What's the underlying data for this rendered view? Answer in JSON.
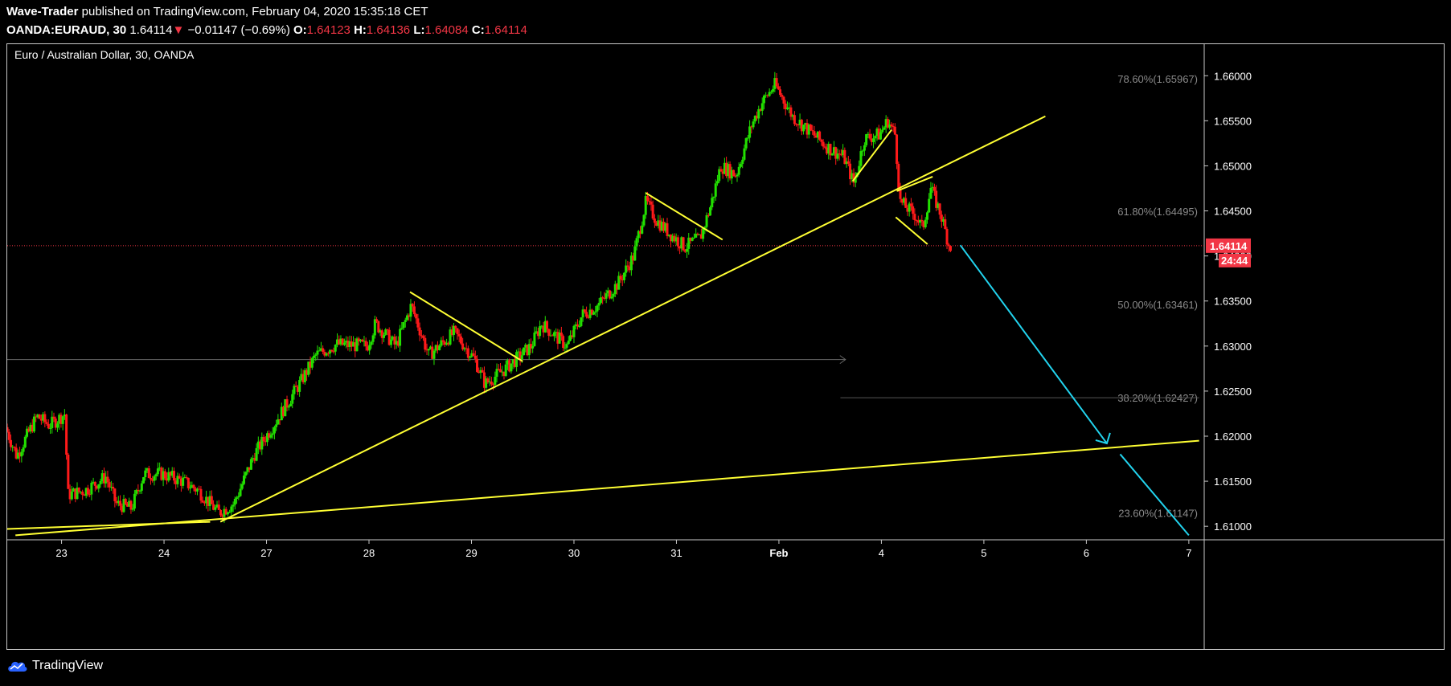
{
  "header": {
    "author": "Wave-Trader",
    "published_text": "published on TradingView.com, February 04, 2020 15:35:18 CET",
    "symbol": "OANDA:EURAUD, 30",
    "last": "1.64114",
    "down_arrow": "▼",
    "change": "−0.01147 (−0.69%)",
    "o_label": "O:",
    "o_value": "1.64123",
    "h_label": "H:",
    "h_value": "1.64136",
    "l_label": "L:",
    "l_value": "1.64084",
    "c_label": "C:",
    "c_value": "1.64114"
  },
  "footer": {
    "logo_text": "TradingView",
    "logo_icon": "tradingview-cloud-icon"
  },
  "colors": {
    "up": "#22e000",
    "down": "#ff1a1a",
    "trend": "#ffff33",
    "projection": "#22d3ee",
    "fib": "#8a8a8a",
    "price_tag": "#f23645"
  },
  "chart_data": {
    "type": "candlestick",
    "title": "Euro / Australian Dollar, 30, OANDA",
    "ylim": [
      1.6085,
      1.6635
    ],
    "y_ticks": [
      "1.61000",
      "1.61500",
      "1.62000",
      "1.62500",
      "1.63000",
      "1.63500",
      "1.64000",
      "1.64500",
      "1.65000",
      "1.65500",
      "1.66000"
    ],
    "x_ticks": [
      {
        "label": "23",
        "x": 23
      },
      {
        "label": "24",
        "x": 24
      },
      {
        "label": "27",
        "x": 25
      },
      {
        "label": "28",
        "x": 26
      },
      {
        "label": "29",
        "x": 27
      },
      {
        "label": "30",
        "x": 28
      },
      {
        "label": "31",
        "x": 29
      },
      {
        "label": "Feb",
        "x": 30,
        "bold": true
      },
      {
        "label": "4",
        "x": 31
      },
      {
        "label": "5",
        "x": 32
      },
      {
        "label": "6",
        "x": 33
      },
      {
        "label": "7",
        "x": 34
      }
    ],
    "xlim": [
      22.47,
      34.15
    ],
    "last_price": "1.64114",
    "countdown": "24:44",
    "fib_levels": [
      {
        "label": "78.60%(1.65967)",
        "price": 1.65967
      },
      {
        "label": "61.80%(1.64495)",
        "price": 1.64495
      },
      {
        "label": "50.00%(1.63461)",
        "price": 1.63461
      },
      {
        "label": "38.20%(1.62427)",
        "price": 1.62427
      },
      {
        "label": "23.60%(1.61147)",
        "price": 1.61147
      }
    ],
    "price_path": [
      [
        22.47,
        1.621
      ],
      [
        22.58,
        1.6178
      ],
      [
        22.7,
        1.6205
      ],
      [
        22.78,
        1.6222
      ],
      [
        22.9,
        1.6212
      ],
      [
        23.02,
        1.6222
      ],
      [
        23.05,
        1.6225
      ],
      [
        23.08,
        1.6135
      ],
      [
        23.25,
        1.614
      ],
      [
        23.45,
        1.6155
      ],
      [
        23.55,
        1.6125
      ],
      [
        23.7,
        1.612
      ],
      [
        23.82,
        1.6158
      ],
      [
        24.0,
        1.6158
      ],
      [
        24.2,
        1.615
      ],
      [
        24.35,
        1.614
      ],
      [
        24.55,
        1.6115
      ],
      [
        24.7,
        1.6125
      ],
      [
        24.9,
        1.618
      ],
      [
        25.1,
        1.6215
      ],
      [
        25.35,
        1.626
      ],
      [
        25.5,
        1.629
      ],
      [
        25.7,
        1.6302
      ],
      [
        26.0,
        1.63
      ],
      [
        26.08,
        1.6325
      ],
      [
        26.28,
        1.63
      ],
      [
        26.43,
        1.6345
      ],
      [
        26.6,
        1.629
      ],
      [
        26.85,
        1.6315
      ],
      [
        27.05,
        1.6285
      ],
      [
        27.15,
        1.6258
      ],
      [
        27.35,
        1.6275
      ],
      [
        27.6,
        1.63
      ],
      [
        27.7,
        1.6325
      ],
      [
        27.95,
        1.63
      ],
      [
        28.1,
        1.6335
      ],
      [
        28.25,
        1.6345
      ],
      [
        28.45,
        1.637
      ],
      [
        28.6,
        1.64
      ],
      [
        28.72,
        1.646
      ],
      [
        28.82,
        1.644
      ],
      [
        28.95,
        1.6425
      ],
      [
        29.1,
        1.641
      ],
      [
        29.25,
        1.642
      ],
      [
        29.35,
        1.6455
      ],
      [
        29.45,
        1.65
      ],
      [
        29.6,
        1.649
      ],
      [
        29.75,
        1.6545
      ],
      [
        29.85,
        1.657
      ],
      [
        29.98,
        1.659
      ],
      [
        30.15,
        1.6555
      ],
      [
        30.35,
        1.6535
      ],
      [
        30.5,
        1.652
      ],
      [
        30.65,
        1.651
      ],
      [
        30.75,
        1.648
      ],
      [
        30.85,
        1.653
      ],
      [
        31.0,
        1.6535
      ],
      [
        31.08,
        1.655
      ],
      [
        31.15,
        1.6535
      ],
      [
        31.2,
        1.646
      ],
      [
        31.35,
        1.6445
      ],
      [
        31.42,
        1.643
      ],
      [
        31.5,
        1.6475
      ],
      [
        31.6,
        1.6445
      ],
      [
        31.68,
        1.6411
      ]
    ],
    "trendlines": [
      {
        "x": [
          22.47,
          24.45
        ],
        "y": [
          1.6097,
          1.6105
        ],
        "color": "trend"
      },
      {
        "x": [
          24.55,
          32.6
        ],
        "y": [
          1.6105,
          1.6555
        ],
        "color": "trend"
      },
      {
        "x": [
          22.55,
          34.1
        ],
        "y": [
          1.609,
          1.6195
        ],
        "color": "trend"
      },
      {
        "x": [
          26.4,
          27.5
        ],
        "y": [
          1.636,
          1.6283
        ],
        "color": "trend"
      },
      {
        "x": [
          28.7,
          29.45
        ],
        "y": [
          1.647,
          1.6418
        ],
        "color": "trend"
      },
      {
        "x": [
          30.72,
          31.1
        ],
        "y": [
          1.6483,
          1.654
        ],
        "color": "trend"
      },
      {
        "x": [
          31.15,
          31.5
        ],
        "y": [
          1.6472,
          1.6488
        ],
        "color": "trend"
      },
      {
        "x": [
          31.14,
          31.45
        ],
        "y": [
          1.6443,
          1.6413
        ],
        "color": "trend"
      },
      {
        "x": [
          31.77,
          33.2
        ],
        "y": [
          1.6412,
          1.6192
        ],
        "color": "projection"
      },
      {
        "x": [
          33.33,
          34.0
        ],
        "y": [
          1.618,
          1.609
        ],
        "color": "projection"
      }
    ],
    "h_ray": {
      "x": [
        22.47,
        30.65
      ],
      "y": 1.6285
    },
    "fib_line": {
      "x": [
        30.6,
        34.1
      ],
      "y": 1.62427
    }
  }
}
